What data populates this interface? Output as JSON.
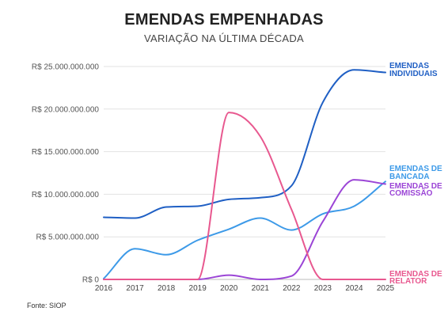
{
  "header": {
    "title": "EMENDAS EMPENHADAS",
    "subtitle": "VARIAÇÃO NA ÚLTIMA DÉCADA"
  },
  "source": "Fonte: SIOP",
  "chart_data": {
    "type": "line",
    "title": "EMENDAS EMPENHADAS",
    "subtitle": "VARIAÇÃO NA ÚLTIMA DÉCADA",
    "x": [
      2016,
      2017,
      2018,
      2019,
      2020,
      2021,
      2022,
      2023,
      2024,
      2025
    ],
    "x_tick_labels": [
      "2016",
      "2017",
      "2018",
      "2019",
      "2020",
      "2021",
      "2022",
      "2023",
      "2024",
      "2025"
    ],
    "ylim": [
      0,
      25000000000
    ],
    "y_ticks": [
      0,
      5000000000,
      10000000000,
      15000000000,
      20000000000,
      25000000000
    ],
    "y_tick_labels": [
      "R$ 0",
      "R$ 5.000.000.000",
      "R$ 10.000.000.000",
      "R$ 15.000.000.000",
      "R$ 20.000.000.000",
      "R$ 25.000.000.000"
    ],
    "grid": "horizontal",
    "series": [
      {
        "name": "EMENDAS INDIVIDUAIS",
        "label_lines": [
          "EMENDAS",
          "INDIVIDUAIS"
        ],
        "color": "#1f5fc4",
        "values": [
          7300000000,
          7200000000,
          8500000000,
          8600000000,
          9400000000,
          9600000000,
          11000000000,
          20800000000,
          24600000000,
          24300000000
        ]
      },
      {
        "name": "EMENDAS DE BANCADA",
        "label_lines": [
          "EMENDAS DE",
          "BANCADA"
        ],
        "color": "#3d9ae8",
        "values": [
          100000000,
          3600000000,
          2900000000,
          4600000000,
          5900000000,
          7200000000,
          5800000000,
          7700000000,
          8600000000,
          11500000000
        ]
      },
      {
        "name": "EMENDAS DE COMISSÃO",
        "label_lines": [
          "EMENDAS DE",
          "COMISSÃO"
        ],
        "color": "#9b45d6",
        "values": [
          0,
          0,
          0,
          0,
          500000000,
          0,
          400000000,
          6800000000,
          11700000000,
          11200000000
        ]
      },
      {
        "name": "EMENDAS DE RELATOR",
        "label_lines": [
          "EMENDAS DE",
          "RELATOR"
        ],
        "color": "#e8588f",
        "values": [
          0,
          0,
          0,
          0,
          19600000000,
          16800000000,
          8200000000,
          0,
          0,
          0
        ]
      }
    ]
  }
}
